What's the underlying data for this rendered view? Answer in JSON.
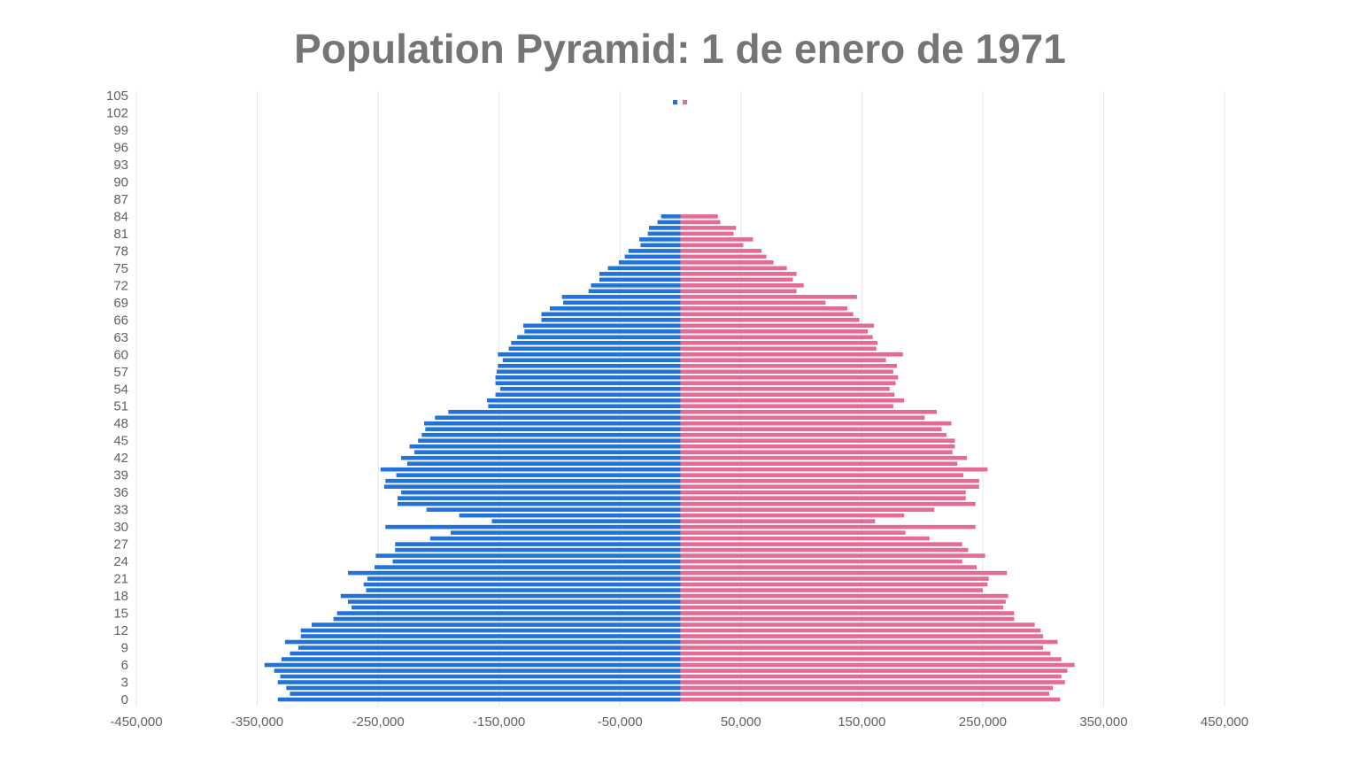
{
  "chart_data": {
    "type": "bar",
    "orientation": "horizontal",
    "title": "Population Pyramid: 1 de enero de 1971",
    "xlabel": "",
    "ylabel": "",
    "xlim": [
      -450000,
      450000
    ],
    "x_ticks": [
      -450000,
      -350000,
      -250000,
      -150000,
      -50000,
      50000,
      150000,
      250000,
      350000,
      450000
    ],
    "x_tick_labels": [
      "-450,000",
      "-350,000",
      "-250,000",
      "-150,000",
      "-50,000",
      "50,000",
      "150,000",
      "250,000",
      "350,000",
      "450,000"
    ],
    "y_tick_labels": [
      "0",
      "3",
      "6",
      "9",
      "12",
      "15",
      "18",
      "21",
      "24",
      "27",
      "30",
      "33",
      "36",
      "39",
      "42",
      "45",
      "48",
      "51",
      "54",
      "57",
      "60",
      "63",
      "66",
      "69",
      "72",
      "75",
      "78",
      "81",
      "84",
      "87",
      "90",
      "93",
      "96",
      "99",
      "102",
      "105"
    ],
    "grid": "vertical",
    "legend": "top-center",
    "categories_start": 0,
    "categories_end": 105,
    "series": [
      {
        "color": "#2273d9",
        "values": [
          -333000,
          -323000,
          -326000,
          -333000,
          -331000,
          -336000,
          -344000,
          -330000,
          -323000,
          -316000,
          -327000,
          -314000,
          -314000,
          -305000,
          -287000,
          -284000,
          -272000,
          -275000,
          -281000,
          -260000,
          -262000,
          -259000,
          -275000,
          -253000,
          -238000,
          -252000,
          -236000,
          -236000,
          -207000,
          -190000,
          -244000,
          -156000,
          -183000,
          -210000,
          -234000,
          -234000,
          -231000,
          -245000,
          -244000,
          -235000,
          -248000,
          -226000,
          -231000,
          -220000,
          -224000,
          -217000,
          -214000,
          -211000,
          -212000,
          -203000,
          -192000,
          -159000,
          -160000,
          -153000,
          -149000,
          -153000,
          -153000,
          -152000,
          -151000,
          -147000,
          -151000,
          -142000,
          -140000,
          -135000,
          -129000,
          -130000,
          -115000,
          -115000,
          -108000,
          -97000,
          -98000,
          -76000,
          -74000,
          -67000,
          -67000,
          -60000,
          -51000,
          -46000,
          -43000,
          -33000,
          -34000,
          -27000,
          -26000,
          -19000,
          -16000,
          0,
          0,
          0,
          0,
          0,
          0,
          0,
          0,
          0,
          0,
          0,
          0,
          0,
          0,
          0,
          0,
          0,
          0,
          0,
          0,
          0
        ]
      },
      {
        "color": "#e46b95",
        "values": [
          314000,
          305000,
          308000,
          318000,
          315000,
          320000,
          326000,
          315000,
          306000,
          300000,
          312000,
          300000,
          298000,
          293000,
          276000,
          276000,
          267000,
          269000,
          271000,
          250000,
          254000,
          255000,
          270000,
          245000,
          233000,
          252000,
          238000,
          233000,
          206000,
          186000,
          244000,
          161000,
          185000,
          210000,
          244000,
          236000,
          236000,
          247000,
          247000,
          234000,
          254000,
          229000,
          237000,
          225000,
          227000,
          227000,
          220000,
          216000,
          224000,
          202000,
          212000,
          176000,
          185000,
          177000,
          173000,
          178000,
          180000,
          176000,
          179000,
          170000,
          184000,
          162000,
          163000,
          159000,
          155000,
          160000,
          148000,
          143000,
          138000,
          120000,
          146000,
          96000,
          102000,
          93000,
          96000,
          88000,
          77000,
          71000,
          67000,
          52000,
          60000,
          44000,
          46000,
          33000,
          31000,
          0,
          0,
          0,
          0,
          0,
          0,
          0,
          0,
          0,
          0,
          0,
          0,
          0,
          0,
          0,
          0,
          0,
          0,
          0,
          0,
          0
        ]
      }
    ]
  }
}
